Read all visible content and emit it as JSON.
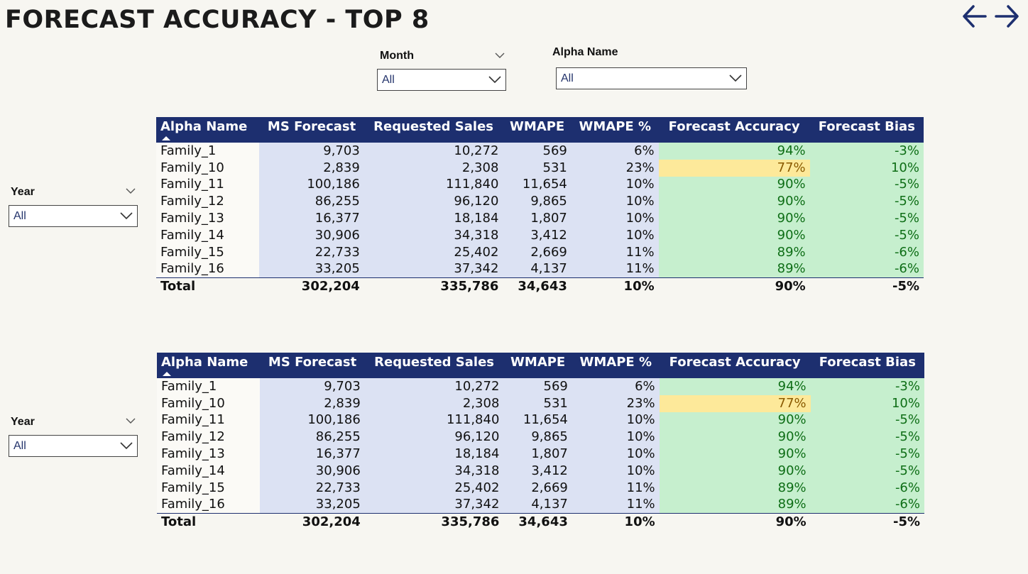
{
  "title": "FORECAST ACCURACY - TOP 8",
  "nav": {
    "back_icon": "arrow-left-icon",
    "forward_icon": "arrow-right-icon",
    "color": "#1d2f6f"
  },
  "slicers": {
    "month": {
      "label": "Month",
      "value": "All"
    },
    "alpha_name": {
      "label": "Alpha Name",
      "value": "All"
    },
    "year_top": {
      "label": "Year",
      "value": "All"
    },
    "year_bottom": {
      "label": "Year",
      "value": "All"
    }
  },
  "colors": {
    "header": "#1d2f6f",
    "blue_band": "#dce2f3",
    "good": "#c6efce",
    "warn": "#fde99a"
  },
  "table": {
    "headers": [
      "Alpha Name",
      "MS Forecast",
      "Requested Sales",
      "WMAPE",
      "WMAPE %",
      "Forecast Accuracy",
      "Forecast Bias"
    ],
    "rows": [
      [
        "Family_1",
        "9,703",
        "10,272",
        "569",
        "6%",
        "94%",
        "-3%"
      ],
      [
        "Family_10",
        "2,839",
        "2,308",
        "531",
        "23%",
        "77%",
        "10%"
      ],
      [
        "Family_11",
        "100,186",
        "111,840",
        "11,654",
        "10%",
        "90%",
        "-5%"
      ],
      [
        "Family_12",
        "86,255",
        "96,120",
        "9,865",
        "10%",
        "90%",
        "-5%"
      ],
      [
        "Family_13",
        "16,377",
        "18,184",
        "1,807",
        "10%",
        "90%",
        "-5%"
      ],
      [
        "Family_14",
        "30,906",
        "34,318",
        "3,412",
        "10%",
        "90%",
        "-5%"
      ],
      [
        "Family_15",
        "22,733",
        "25,402",
        "2,669",
        "11%",
        "89%",
        "-6%"
      ],
      [
        "Family_16",
        "33,205",
        "37,342",
        "4,137",
        "11%",
        "89%",
        "-6%"
      ]
    ],
    "total": [
      "Total",
      "302,204",
      "335,786",
      "34,643",
      "10%",
      "90%",
      "-5%"
    ],
    "warn_rows": [
      1
    ]
  }
}
